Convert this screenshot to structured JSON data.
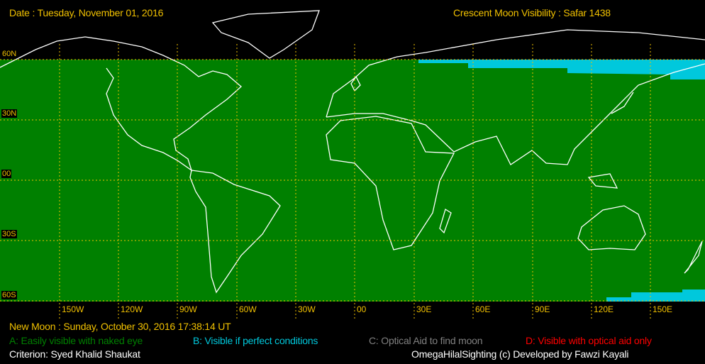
{
  "header": {
    "date": "Date : Tuesday, November 01, 2016",
    "title": "Crescent Moon Visibility : Safar  1438"
  },
  "map": {
    "colors": {
      "zone_a": "#008000",
      "zone_b": "#00c8dc",
      "grid": "#f0c000",
      "coast": "#ffffff"
    },
    "lat_labels": [
      "60N",
      "30N",
      "00",
      "30S",
      "60S"
    ],
    "lon_labels": [
      "150W",
      "120W",
      "90W",
      "60W",
      "30W",
      "00",
      "30E",
      "60E",
      "90E",
      "120E",
      "150E"
    ]
  },
  "footer": {
    "new_moon": "New Moon : Sunday, October 30, 2016  17:38:14  UT",
    "legend": [
      {
        "label": "A: Easily visible with naked eye",
        "color": "#008000"
      },
      {
        "label": "B: Visible if perfect conditions",
        "color": "#00c8dc"
      },
      {
        "label": "C: Optical Aid to find moon",
        "color": "#808080"
      },
      {
        "label": "D: Visible with optical aid only",
        "color": "#ff0000"
      }
    ],
    "criterion": "Criterion: Syed Khalid Shaukat",
    "credit": "OmegaHilalSighting  (c)  Developed by Fawzi Kayali"
  }
}
